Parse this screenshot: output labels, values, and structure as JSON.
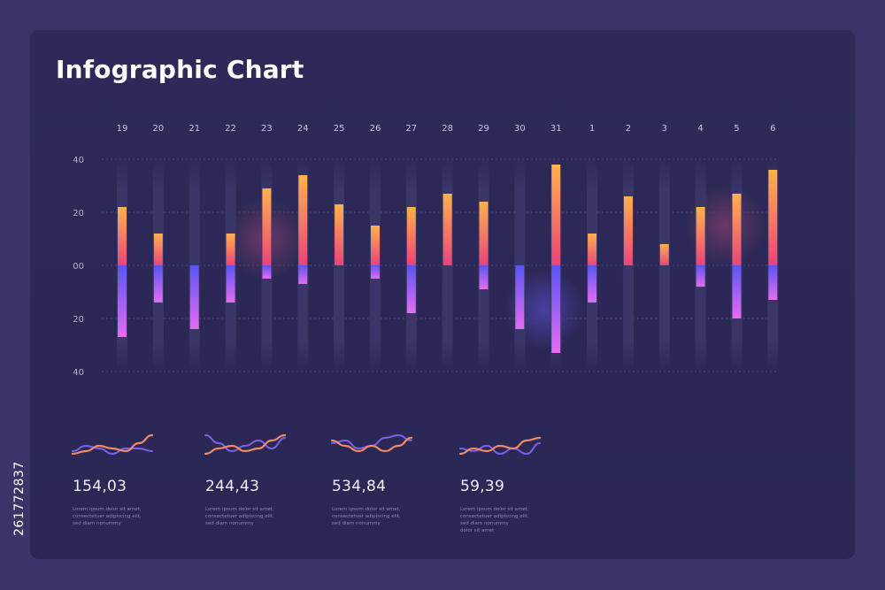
{
  "title": "Infographic Chart",
  "chart_data": {
    "type": "bar",
    "title": "Infographic Chart",
    "categories": [
      "19",
      "20",
      "21",
      "22",
      "23",
      "24",
      "25",
      "26",
      "27",
      "28",
      "29",
      "30",
      "31",
      "1",
      "2",
      "3",
      "4",
      "5",
      "6"
    ],
    "y_tick_labels": [
      "40",
      "20",
      "00",
      "20",
      "40"
    ],
    "ylim": [
      -40,
      40
    ],
    "grid": true,
    "series": [
      {
        "values": [
          22,
          12,
          0,
          12,
          29,
          34,
          23,
          15,
          22,
          27,
          24,
          0,
          38,
          12,
          26,
          8,
          22,
          27,
          36
        ]
      },
      {
        "values": [
          -27,
          -14,
          -24,
          -14,
          -5,
          -7,
          0,
          -5,
          -18,
          0,
          -9,
          -24,
          -33,
          -14,
          0,
          0,
          -8,
          -20,
          -13
        ]
      }
    ],
    "colors": {
      "positive_top": "#ffb14e",
      "positive_bottom": "#e8457a",
      "negative_top": "#5a55f2",
      "negative_bottom": "#e46cf0"
    }
  },
  "mini_stats": [
    {
      "value": "154,03",
      "desc": [
        "Lorem ipsum dolor sit amet,",
        "consectetuer adipiscing elit,",
        "sed diam nonummy"
      ],
      "line_a": [
        3,
        4,
        6,
        5,
        4,
        7,
        10
      ],
      "line_b": [
        4,
        6,
        5,
        3,
        5,
        5,
        4
      ]
    },
    {
      "value": "244,43",
      "desc": [
        "Lorem ipsum dolor sit amet,",
        "consectetuer adipiscing elit,",
        "sed diam nonummy"
      ],
      "line_a": [
        3,
        5,
        6,
        4,
        5,
        8,
        10
      ],
      "line_b": [
        10,
        7,
        4,
        6,
        8,
        5,
        9
      ]
    },
    {
      "value": "534,84",
      "desc": [
        "Lorem ipsum dolor sit amet,",
        "consectetuer adipiscing elit,",
        "sed diam nonummy"
      ],
      "line_a": [
        8,
        6,
        4,
        6,
        4,
        6,
        9
      ],
      "line_b": [
        7,
        8,
        5,
        6,
        9,
        10,
        8
      ]
    },
    {
      "value": "59,39",
      "desc": [
        "Lorem ipsum dolor sit amet,",
        "consectetuer adipiscing elit,",
        "sed diam nonummy",
        "dolor sit amet"
      ],
      "line_a": [
        3,
        5,
        4,
        6,
        5,
        8,
        9
      ],
      "line_b": [
        5,
        4,
        6,
        3,
        5,
        3,
        7
      ]
    }
  ],
  "side_credit": "261772837"
}
